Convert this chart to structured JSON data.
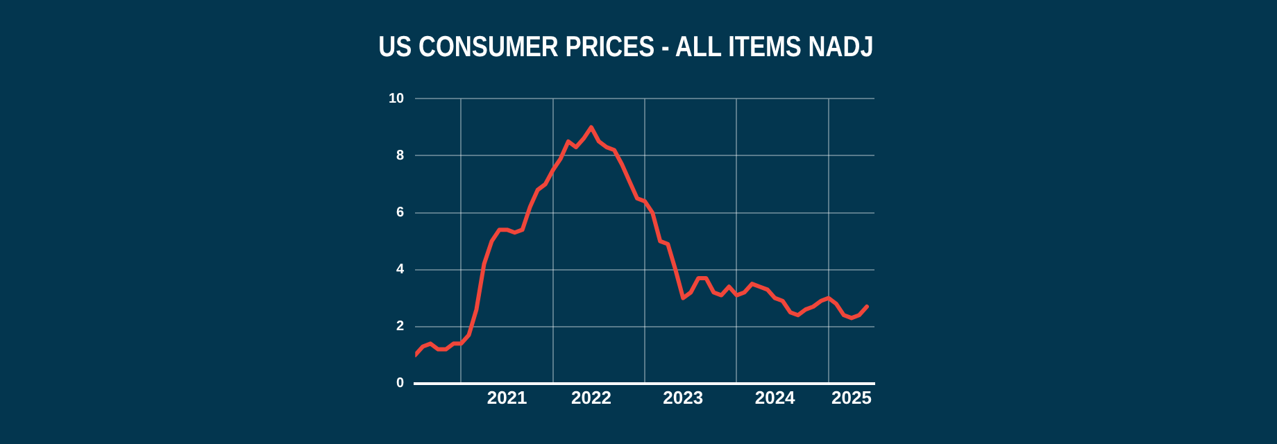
{
  "chart_data": {
    "type": "line",
    "title": "US CONSUMER PRICES - ALL ITEMS NADJ",
    "x": [
      "2020-07",
      "2020-08",
      "2020-09",
      "2020-10",
      "2020-11",
      "2020-12",
      "2021-01",
      "2021-02",
      "2021-03",
      "2021-04",
      "2021-05",
      "2021-06",
      "2021-07",
      "2021-08",
      "2021-09",
      "2021-10",
      "2021-11",
      "2021-12",
      "2022-01",
      "2022-02",
      "2022-03",
      "2022-04",
      "2022-05",
      "2022-06",
      "2022-07",
      "2022-08",
      "2022-09",
      "2022-10",
      "2022-11",
      "2022-12",
      "2023-01",
      "2023-02",
      "2023-03",
      "2023-04",
      "2023-05",
      "2023-06",
      "2023-07",
      "2023-08",
      "2023-09",
      "2023-10",
      "2023-11",
      "2023-12",
      "2024-01",
      "2024-02",
      "2024-03",
      "2024-04",
      "2024-05",
      "2024-06",
      "2024-07",
      "2024-08",
      "2024-09",
      "2024-10",
      "2024-11",
      "2024-12",
      "2025-01",
      "2025-02",
      "2025-03",
      "2025-04",
      "2025-05",
      "2025-06"
    ],
    "series": [
      {
        "color": "#f0463a",
        "values": [
          1.0,
          1.3,
          1.4,
          1.2,
          1.2,
          1.4,
          1.4,
          1.7,
          2.6,
          4.2,
          5.0,
          5.4,
          5.4,
          5.3,
          5.4,
          6.2,
          6.8,
          7.0,
          7.5,
          7.9,
          8.5,
          8.3,
          8.6,
          9.0,
          8.5,
          8.3,
          8.2,
          7.7,
          7.1,
          6.5,
          6.4,
          6.0,
          5.0,
          4.9,
          4.0,
          3.0,
          3.2,
          3.7,
          3.7,
          3.2,
          3.1,
          3.4,
          3.1,
          3.2,
          3.5,
          3.4,
          3.3,
          3.0,
          2.9,
          2.5,
          2.4,
          2.6,
          2.7,
          2.9,
          3.0,
          2.8,
          2.4,
          2.3,
          2.4,
          2.7
        ]
      }
    ],
    "xlim": [
      "2020-07",
      "2025-07"
    ],
    "xticks": [
      {
        "value": "2021-01",
        "label": null
      },
      {
        "value": "2021-07",
        "label": "2021"
      },
      {
        "value": "2022-01",
        "label": null
      },
      {
        "value": "2022-06",
        "label": "2022"
      },
      {
        "value": "2023-01",
        "label": null
      },
      {
        "value": "2023-06",
        "label": "2023"
      },
      {
        "value": "2024-01",
        "label": null
      },
      {
        "value": "2024-06",
        "label": "2024"
      },
      {
        "value": "2025-01",
        "label": null
      },
      {
        "value": "2025-04",
        "label": "2025"
      }
    ],
    "ylim": [
      0,
      10
    ],
    "yticks": [
      0,
      2,
      4,
      6,
      8,
      10
    ],
    "grid": true,
    "legend": false,
    "marker": "none",
    "line_style": "solid"
  }
}
